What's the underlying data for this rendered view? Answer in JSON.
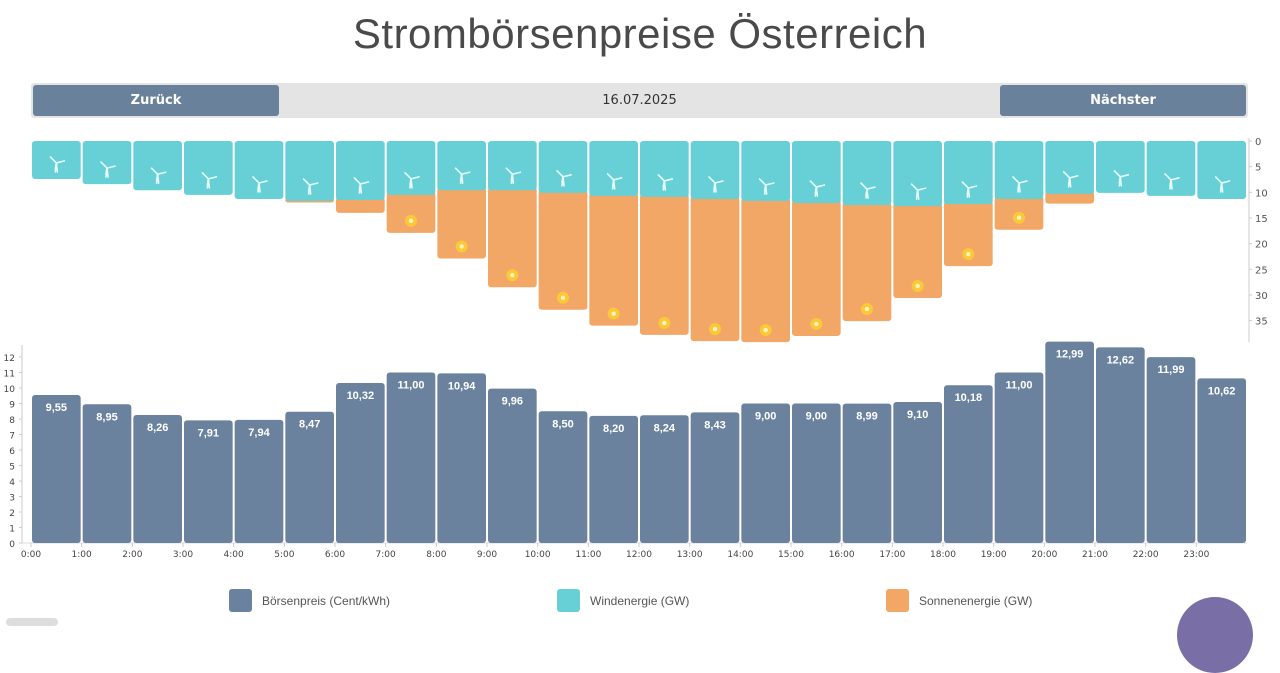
{
  "title": "Strombörsenpreise Österreich",
  "nav": {
    "prev_label": "Zurück",
    "date": "16.07.2025",
    "next_label": "Nächster"
  },
  "colors": {
    "price": "#6a829e",
    "wind": "#66d0d6",
    "solar": "#f2a766",
    "sun": "#f9c937"
  },
  "icons": {
    "wind": "wind-turbine-icon",
    "solar": "sun-icon"
  },
  "legend": [
    {
      "label": "Börsenpreis (Cent/kWh)",
      "color": "#6a829e"
    },
    {
      "label": "Windenergie (GW)",
      "color": "#66d0d6"
    },
    {
      "label": "Sonnenenergie (GW)",
      "color": "#f2a766"
    }
  ],
  "chart_data": [
    {
      "type": "bar",
      "stacked": true,
      "inverted_y": true,
      "categories": [
        "0:00",
        "1:00",
        "2:00",
        "3:00",
        "4:00",
        "5:00",
        "6:00",
        "7:00",
        "8:00",
        "9:00",
        "10:00",
        "11:00",
        "12:00",
        "13:00",
        "14:00",
        "15:00",
        "16:00",
        "17:00",
        "18:00",
        "19:00",
        "20:00",
        "21:00",
        "22:00",
        "23:00"
      ],
      "series": [
        {
          "name": "Windenergie (GW)",
          "values": [
            7.4,
            8.4,
            9.6,
            10.5,
            11.3,
            11.7,
            11.5,
            10.5,
            9.6,
            9.6,
            10.1,
            10.7,
            10.9,
            11.3,
            11.7,
            12.1,
            12.5,
            12.7,
            12.3,
            11.3,
            10.3,
            10.1,
            10.7,
            11.3
          ]
        },
        {
          "name": "Sonnenenergie (GW)",
          "values": [
            0,
            0,
            0,
            0,
            0,
            0.3,
            2.5,
            7.4,
            13.3,
            18.9,
            22.8,
            25.3,
            26.9,
            27.7,
            27.5,
            25.9,
            22.6,
            17.9,
            12.1,
            6.0,
            1.9,
            0,
            0,
            0
          ]
        }
      ],
      "ylim": [
        0,
        38
      ],
      "yticks": [
        0,
        5,
        10,
        15,
        20,
        25,
        30,
        35
      ],
      "y_axis_side": "right"
    },
    {
      "type": "bar",
      "categories": [
        "0:00",
        "1:00",
        "2:00",
        "3:00",
        "4:00",
        "5:00",
        "6:00",
        "7:00",
        "8:00",
        "9:00",
        "10:00",
        "11:00",
        "12:00",
        "13:00",
        "14:00",
        "15:00",
        "16:00",
        "17:00",
        "18:00",
        "19:00",
        "20:00",
        "21:00",
        "22:00",
        "23:00"
      ],
      "series": [
        {
          "name": "Börsenpreis (Cent/kWh)",
          "values": [
            9.55,
            8.95,
            8.26,
            7.91,
            7.94,
            8.47,
            10.32,
            11.0,
            10.94,
            9.96,
            8.5,
            8.2,
            8.24,
            8.43,
            9.0,
            9.0,
            8.99,
            9.1,
            10.18,
            11.0,
            12.99,
            12.62,
            11.99,
            10.62
          ]
        }
      ],
      "data_labels": [
        "9,55",
        "8,95",
        "8,26",
        "7,91",
        "7,94",
        "8,47",
        "10,32",
        "11,00",
        "10,94",
        "9,96",
        "8,50",
        "8,20",
        "8,24",
        "8,43",
        "9,00",
        "9,00",
        "8,99",
        "9,10",
        "10,18",
        "11,00",
        "12,99",
        "12,62",
        "11,99",
        "10,62"
      ],
      "ylim": [
        0,
        12.5
      ],
      "yticks": [
        0,
        1,
        2,
        3,
        4,
        5,
        6,
        7,
        8,
        9,
        10,
        11,
        12
      ],
      "y_axis_side": "left"
    }
  ]
}
